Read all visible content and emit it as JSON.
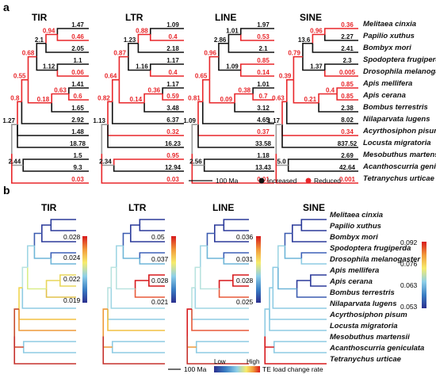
{
  "panels": {
    "a": "a",
    "b": "b"
  },
  "groups": [
    "TIR",
    "LTR",
    "LINE",
    "SINE"
  ],
  "species": [
    "Melitaea cinxia",
    "Papilio xuthus",
    "Bombyx mori",
    "Spodoptera frugiperda",
    "Drosophila melanogaster",
    "Apis mellifera",
    "Apis cerana",
    "Bombus terrestris",
    "Nilaparvata lugens",
    "Acyrthosiphon pisum",
    "Locusta migratoria",
    "Mesobuthus martensii",
    "Acanthoscurria geniculata",
    "Tetranychus urticae"
  ],
  "colors": {
    "increased": "#111111",
    "reduced": "#e8262a",
    "root": "#9a9a9a"
  },
  "branch_values": {
    "TIR": {
      "n1": "1.47",
      "n2": "0.46",
      "n3": "2.05",
      "n4": "1.1",
      "n5": "0.06",
      "n6": "1.41",
      "n7": "0.6",
      "n8": "1.65",
      "n9": "2.92",
      "n10": "1.48",
      "n11": "18.78",
      "n12": "1.5",
      "n13": "9.3",
      "n14": "0.03",
      "i1": "0.94",
      "i2": "2.1",
      "i3": "1.12",
      "i4": "0.68",
      "i5": "0.63",
      "i6": "0.18",
      "i7": "0.55",
      "i8": "0.8",
      "i9": "1.27",
      "i10": "2.44"
    },
    "LTR": {
      "n1": "1.09",
      "n2": "0.4",
      "n3": "2.18",
      "n4": "1.17",
      "n5": "0.4",
      "n6": "1.17",
      "n7": "0.59",
      "n8": "3.48",
      "n9": "6.37",
      "n10": "0.32",
      "n11": "16.23",
      "n12": "0.95",
      "n13": "12.94",
      "n14": "0.03",
      "i1": "0.88",
      "i2": "1.23",
      "i3": "1.16",
      "i4": "0.87",
      "i5": "0.36",
      "i6": "0.14",
      "i7": "0.64",
      "i8": "0.82",
      "i9": "1.13",
      "i10": "2.34"
    },
    "LINE": {
      "n1": "1.97",
      "n2": "0.53",
      "n3": "2.1",
      "n4": "0.85",
      "n5": "0.14",
      "n6": "1.01",
      "n7": "0.7",
      "n8": "3.12",
      "n9": "4.65",
      "n10": "0.37",
      "n11": "33.58",
      "n12": "1.18",
      "n13": "13.43",
      "n14": "0.01",
      "i1": "1.01",
      "i2": "2.86",
      "i3": "1.09",
      "i4": "0.96",
      "i5": "0.38",
      "i6": "0.09",
      "i7": "0.65",
      "i8": "0.81",
      "i9": "1.09",
      "i10": "2.56"
    },
    "SINE": {
      "n1": "0.36",
      "n2": "2.27",
      "n3": "2.41",
      "n4": "2.3",
      "n5": "0.005",
      "n6": "0.85",
      "n7": "0.85",
      "n8": "2.38",
      "n9": "8.02",
      "n10": "0.34",
      "n11": "837.52",
      "n12": "2.69",
      "n13": "42.64",
      "n14": "0.001",
      "i1": "0.96",
      "i2": "13.6",
      "i3": "1.37",
      "i4": "0.79",
      "i5": "0.4",
      "i6": "0.21",
      "i7": "0.39",
      "i8": "0.63",
      "i9": "1.17",
      "i10": "5.0"
    }
  },
  "branch_status": {
    "TIR": {
      "n1": "inc",
      "n2": "red",
      "n3": "inc",
      "n4": "inc",
      "n5": "red",
      "n6": "inc",
      "n7": "red",
      "n8": "inc",
      "n9": "inc",
      "n10": "inc",
      "n11": "inc",
      "n12": "inc",
      "n13": "inc",
      "n14": "red",
      "i1": "red",
      "i2": "inc",
      "i3": "inc",
      "i4": "red",
      "i5": "red",
      "i6": "red",
      "i7": "red",
      "i8": "red",
      "i9": "inc",
      "i10": "inc"
    },
    "LTR": {
      "n1": "inc",
      "n2": "red",
      "n3": "inc",
      "n4": "inc",
      "n5": "red",
      "n6": "inc",
      "n7": "red",
      "n8": "inc",
      "n9": "inc",
      "n10": "red",
      "n11": "inc",
      "n12": "red",
      "n13": "inc",
      "n14": "red",
      "i1": "red",
      "i2": "inc",
      "i3": "inc",
      "i4": "red",
      "i5": "red",
      "i6": "red",
      "i7": "red",
      "i8": "red",
      "i9": "inc",
      "i10": "inc"
    },
    "LINE": {
      "n1": "inc",
      "n2": "red",
      "n3": "inc",
      "n4": "red",
      "n5": "red",
      "n6": "inc",
      "n7": "red",
      "n8": "inc",
      "n9": "inc",
      "n10": "red",
      "n11": "inc",
      "n12": "inc",
      "n13": "inc",
      "n14": "red",
      "i1": "inc",
      "i2": "inc",
      "i3": "inc",
      "i4": "red",
      "i5": "red",
      "i6": "red",
      "i7": "red",
      "i8": "red",
      "i9": "inc",
      "i10": "inc"
    },
    "SINE": {
      "n1": "red",
      "n2": "inc",
      "n3": "inc",
      "n4": "inc",
      "n5": "red",
      "n6": "red",
      "n7": "red",
      "n8": "inc",
      "n9": "inc",
      "n10": "red",
      "n11": "inc",
      "n12": "inc",
      "n13": "inc",
      "n14": "red",
      "i1": "red",
      "i2": "inc",
      "i3": "inc",
      "i4": "red",
      "i5": "red",
      "i6": "red",
      "i7": "red",
      "i8": "red",
      "i9": "inc",
      "i10": "inc"
    }
  },
  "legend_a": {
    "scale": "100 Ma",
    "increased": "Increased",
    "reduced": "Reduced"
  },
  "colorbars": {
    "TIR": [
      "0.028",
      "0.024",
      "0.022",
      "0.019"
    ],
    "LTR": [
      "0.05",
      "0.037",
      "0.028",
      "0.021"
    ],
    "LINE": [
      "0.036",
      "0.031",
      "0.028",
      "0.025"
    ],
    "SINE": [
      "0.092",
      "0.076",
      "0.063",
      "0.053"
    ]
  },
  "legend_b": {
    "scale": "100 Ma",
    "low": "Low",
    "high": "High",
    "title": "TE load change rate"
  }
}
